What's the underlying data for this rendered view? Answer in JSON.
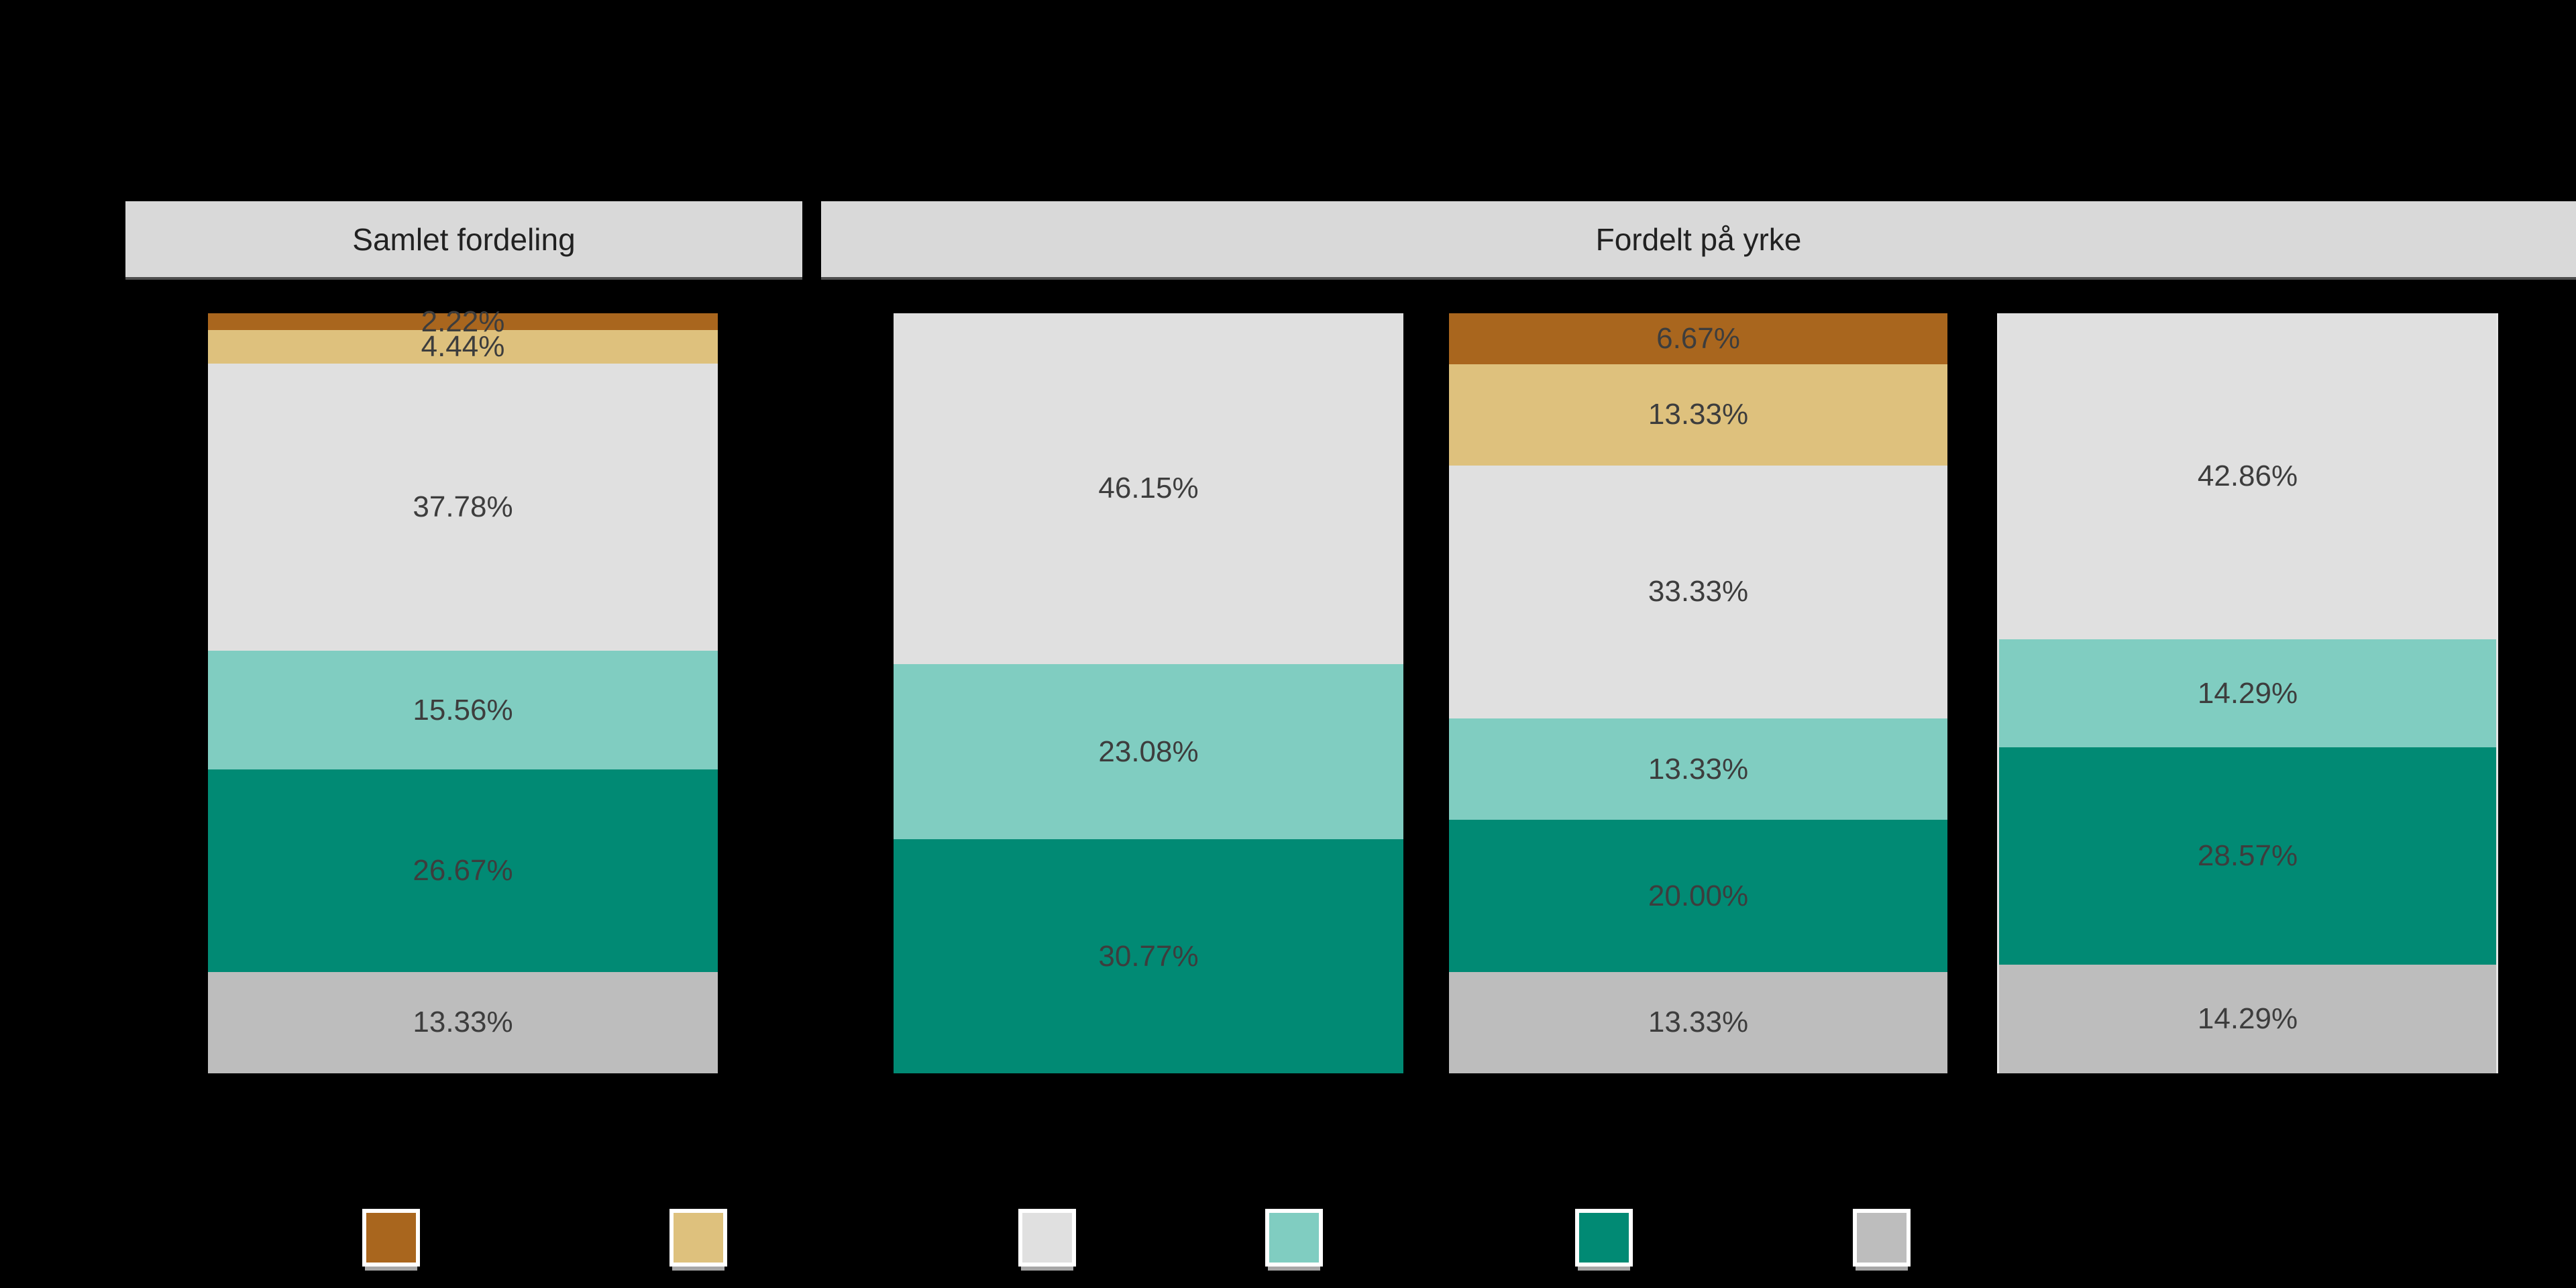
{
  "background": "#000000",
  "facets": [
    {
      "title": "Samlet fordeling"
    },
    {
      "title": "Fordelt på yrke"
    }
  ],
  "colors": {
    "brown": "#a9661e",
    "tan": "#dec17d",
    "light_gray": "#e0e0e0",
    "light_teal": "#80cdc1",
    "dark_teal": "#018a74",
    "gray": "#bdbdbd",
    "header_bg": "#d9d9d9",
    "header_text": "#212121",
    "label_text": "#3d3d3d"
  },
  "chart_data": {
    "type": "bar",
    "variant": "100%-stacked-vertical",
    "ylim": [
      0,
      100
    ],
    "value_format": "percent-2-decimals",
    "grid": false,
    "legend_position": "bottom",
    "facets": [
      {
        "title": "Samlet fordeling",
        "bar_indices": [
          0
        ]
      },
      {
        "title": "Fordelt på yrke",
        "bar_indices": [
          1,
          2,
          3
        ]
      }
    ],
    "series_order": [
      "brown",
      "tan",
      "light_gray",
      "light_teal",
      "dark_teal",
      "gray"
    ],
    "legend_swatches": [
      "brown",
      "tan",
      "light_gray",
      "light_teal",
      "dark_teal",
      "gray"
    ],
    "bars": [
      {
        "facet": 0,
        "segments": [
          {
            "series": "brown",
            "value": 2.22,
            "label": "2.22%"
          },
          {
            "series": "tan",
            "value": 4.44,
            "label": "4.44%"
          },
          {
            "series": "light_gray",
            "value": 37.78,
            "label": "37.78%"
          },
          {
            "series": "light_teal",
            "value": 15.56,
            "label": "15.56%"
          },
          {
            "series": "dark_teal",
            "value": 26.67,
            "label": "26.67%"
          },
          {
            "series": "gray",
            "value": 13.33,
            "label": "13.33%"
          }
        ]
      },
      {
        "facet": 1,
        "segments": [
          {
            "series": "light_gray",
            "value": 46.15,
            "label": "46.15%"
          },
          {
            "series": "light_teal",
            "value": 23.08,
            "label": "23.08%"
          },
          {
            "series": "dark_teal",
            "value": 30.77,
            "label": "30.77%"
          }
        ]
      },
      {
        "facet": 1,
        "segments": [
          {
            "series": "brown",
            "value": 6.67,
            "label": "6.67%"
          },
          {
            "series": "tan",
            "value": 13.33,
            "label": "13.33%"
          },
          {
            "series": "light_gray",
            "value": 33.33,
            "label": "33.33%"
          },
          {
            "series": "light_teal",
            "value": 13.33,
            "label": "13.33%"
          },
          {
            "series": "dark_teal",
            "value": 20.0,
            "label": "20.00%"
          },
          {
            "series": "gray",
            "value": 13.33,
            "label": "13.33%"
          }
        ]
      },
      {
        "facet": 1,
        "segments": [
          {
            "series": "light_gray",
            "value": 42.86,
            "label": "42.86%"
          },
          {
            "series": "light_teal",
            "value": 14.29,
            "label": "14.29%"
          },
          {
            "series": "dark_teal",
            "value": 28.57,
            "label": "28.57%"
          },
          {
            "series": "gray",
            "value": 14.29,
            "label": "14.29%"
          }
        ]
      }
    ]
  }
}
